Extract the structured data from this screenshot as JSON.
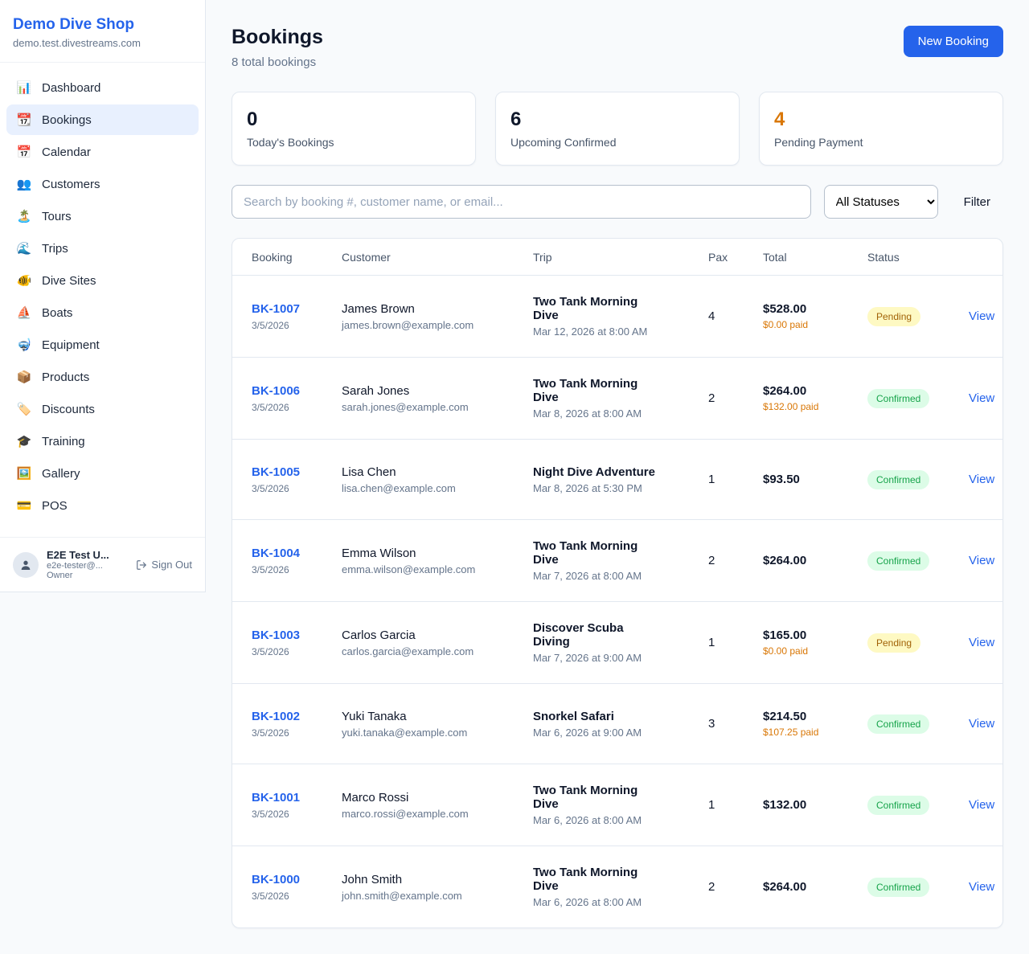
{
  "app": {
    "name": "Demo Dive Shop",
    "domain": "demo.test.divestreams.com"
  },
  "sidebar": {
    "items": [
      {
        "label": "Dashboard",
        "icon": "📊",
        "icon_name": "bar-chart-icon",
        "active": false
      },
      {
        "label": "Bookings",
        "icon": "📆",
        "icon_name": "calendar-date-icon",
        "active": true
      },
      {
        "label": "Calendar",
        "icon": "📅",
        "icon_name": "calendar-icon",
        "active": false
      },
      {
        "label": "Customers",
        "icon": "👥",
        "icon_name": "users-icon",
        "active": false
      },
      {
        "label": "Tours",
        "icon": "🏝️",
        "icon_name": "island-icon",
        "active": false
      },
      {
        "label": "Trips",
        "icon": "🌊",
        "icon_name": "wave-icon",
        "active": false
      },
      {
        "label": "Dive Sites",
        "icon": "🐠",
        "icon_name": "fish-icon",
        "active": false
      },
      {
        "label": "Boats",
        "icon": "⛵",
        "icon_name": "boat-icon",
        "active": false
      },
      {
        "label": "Equipment",
        "icon": "🤿",
        "icon_name": "diving-mask-icon",
        "active": false
      },
      {
        "label": "Products",
        "icon": "📦",
        "icon_name": "package-icon",
        "active": false
      },
      {
        "label": "Discounts",
        "icon": "🏷️",
        "icon_name": "tag-icon",
        "active": false
      },
      {
        "label": "Training",
        "icon": "🎓",
        "icon_name": "graduation-cap-icon",
        "active": false
      },
      {
        "label": "Gallery",
        "icon": "🖼️",
        "icon_name": "picture-icon",
        "active": false
      },
      {
        "label": "POS",
        "icon": "💳",
        "icon_name": "credit-card-icon",
        "active": false
      }
    ],
    "user": {
      "name": "E2E Test U...",
      "email": "e2e-tester@...",
      "role": "Owner",
      "sign_out_label": "Sign Out"
    }
  },
  "header": {
    "title": "Bookings",
    "subtitle": "8 total bookings",
    "new_booking_label": "New Booking"
  },
  "stats": [
    {
      "value": "0",
      "label": "Today's Bookings",
      "accent": false
    },
    {
      "value": "6",
      "label": "Upcoming Confirmed",
      "accent": false
    },
    {
      "value": "4",
      "label": "Pending Payment",
      "accent": true
    }
  ],
  "filters": {
    "search_placeholder": "Search by booking #, customer name, or email...",
    "status_selected": "All Statuses",
    "filter_label": "Filter"
  },
  "table": {
    "columns": [
      "Booking",
      "Customer",
      "Trip",
      "Pax",
      "Total",
      "Status"
    ],
    "view_label": "View",
    "rows": [
      {
        "id": "BK-1007",
        "date": "3/5/2026",
        "customer": "James Brown",
        "email": "james.brown@example.com",
        "trip": "Two Tank Morning Dive",
        "trip_time": "Mar 12, 2026 at 8:00 AM",
        "pax": "4",
        "total": "$528.00",
        "paid": "$0.00 paid",
        "status": "Pending"
      },
      {
        "id": "BK-1006",
        "date": "3/5/2026",
        "customer": "Sarah Jones",
        "email": "sarah.jones@example.com",
        "trip": "Two Tank Morning Dive",
        "trip_time": "Mar 8, 2026 at 8:00 AM",
        "pax": "2",
        "total": "$264.00",
        "paid": "$132.00 paid",
        "status": "Confirmed"
      },
      {
        "id": "BK-1005",
        "date": "3/5/2026",
        "customer": "Lisa Chen",
        "email": "lisa.chen@example.com",
        "trip": "Night Dive Adventure",
        "trip_time": "Mar 8, 2026 at 5:30 PM",
        "pax": "1",
        "total": "$93.50",
        "paid": "",
        "status": "Confirmed"
      },
      {
        "id": "BK-1004",
        "date": "3/5/2026",
        "customer": "Emma Wilson",
        "email": "emma.wilson@example.com",
        "trip": "Two Tank Morning Dive",
        "trip_time": "Mar 7, 2026 at 8:00 AM",
        "pax": "2",
        "total": "$264.00",
        "paid": "",
        "status": "Confirmed"
      },
      {
        "id": "BK-1003",
        "date": "3/5/2026",
        "customer": "Carlos Garcia",
        "email": "carlos.garcia@example.com",
        "trip": "Discover Scuba Diving",
        "trip_time": "Mar 7, 2026 at 9:00 AM",
        "pax": "1",
        "total": "$165.00",
        "paid": "$0.00 paid",
        "status": "Pending"
      },
      {
        "id": "BK-1002",
        "date": "3/5/2026",
        "customer": "Yuki Tanaka",
        "email": "yuki.tanaka@example.com",
        "trip": "Snorkel Safari",
        "trip_time": "Mar 6, 2026 at 9:00 AM",
        "pax": "3",
        "total": "$214.50",
        "paid": "$107.25 paid",
        "status": "Confirmed"
      },
      {
        "id": "BK-1001",
        "date": "3/5/2026",
        "customer": "Marco Rossi",
        "email": "marco.rossi@example.com",
        "trip": "Two Tank Morning Dive",
        "trip_time": "Mar 6, 2026 at 8:00 AM",
        "pax": "1",
        "total": "$132.00",
        "paid": "",
        "status": "Confirmed"
      },
      {
        "id": "BK-1000",
        "date": "3/5/2026",
        "customer": "John Smith",
        "email": "john.smith@example.com",
        "trip": "Two Tank Morning Dive",
        "trip_time": "Mar 6, 2026 at 8:00 AM",
        "pax": "2",
        "total": "$264.00",
        "paid": "",
        "status": "Confirmed"
      }
    ]
  },
  "colors": {
    "brand_blue": "#2563eb",
    "page_bg": "#f8fafc",
    "amber": "#d97706",
    "pending_bg": "#fef9c3",
    "pending_text": "#a16207",
    "confirmed_bg": "#dcfce7",
    "confirmed_text": "#16a34a"
  }
}
